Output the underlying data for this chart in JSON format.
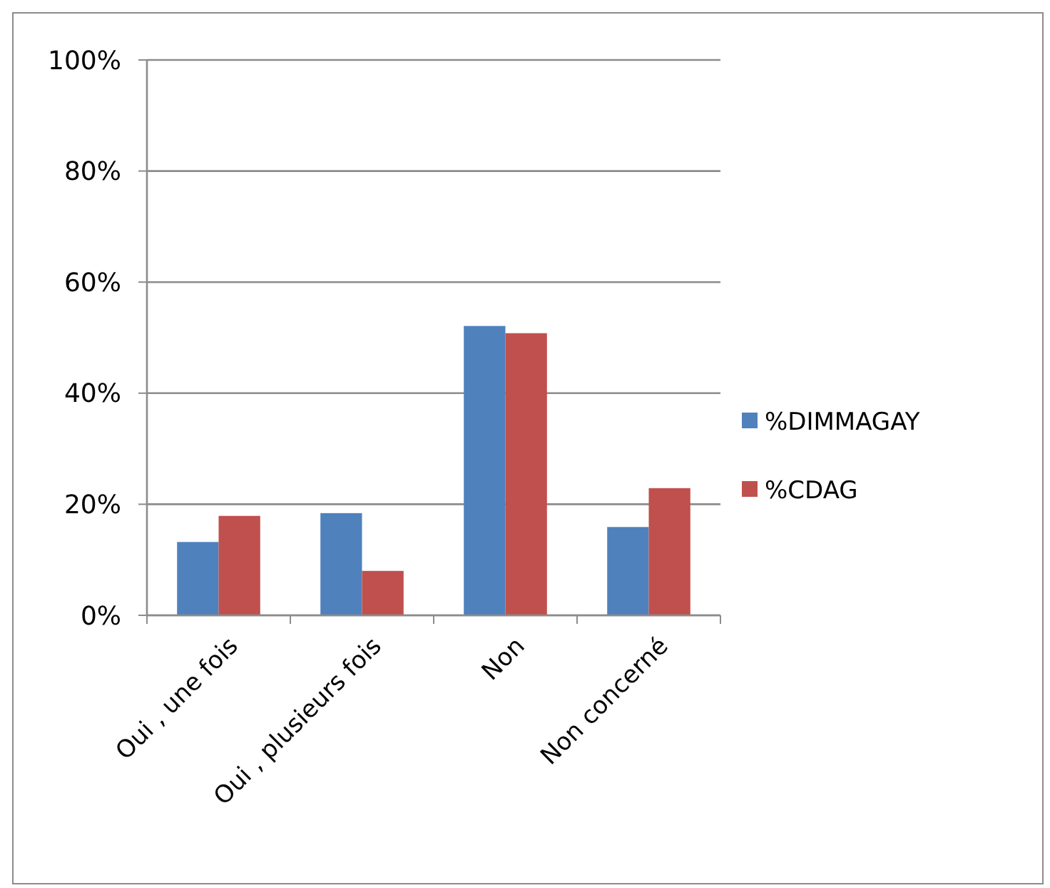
{
  "chart_data": {
    "type": "bar",
    "categories": [
      "Oui , une fois",
      "Oui , plusieurs fois",
      "Non",
      "Non concerné"
    ],
    "series": [
      {
        "name": "%DIMMAGAY",
        "color": "#4f81bd",
        "values": [
          13.2,
          18.4,
          52.1,
          15.9
        ]
      },
      {
        "name": "%CDAG",
        "color": "#c0504d",
        "values": [
          17.9,
          8.0,
          50.8,
          22.9
        ]
      }
    ],
    "ylim": [
      0,
      100
    ],
    "yticks": [
      {
        "value": 0,
        "label": "0%"
      },
      {
        "value": 20,
        "label": "20%"
      },
      {
        "value": 40,
        "label": "40%"
      },
      {
        "value": 60,
        "label": "60%"
      },
      {
        "value": 80,
        "label": "80%"
      },
      {
        "value": 100,
        "label": "100%"
      }
    ],
    "grid": "y",
    "legend": "right"
  }
}
